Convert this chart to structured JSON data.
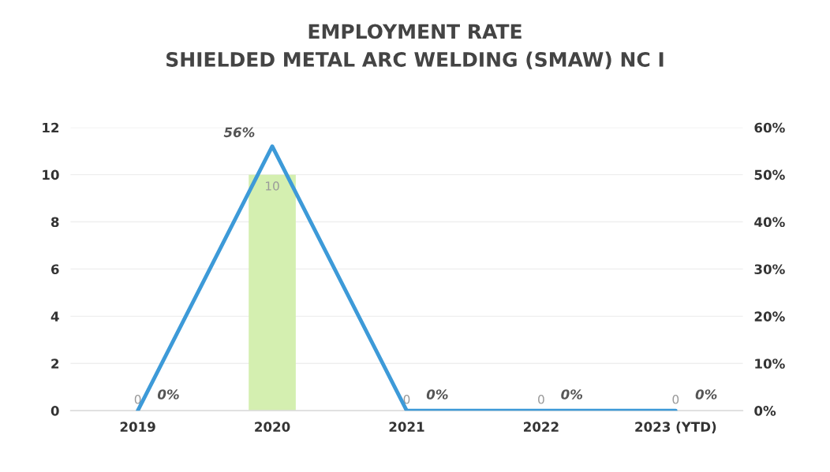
{
  "chart_data": {
    "type": "bar",
    "title": "EMPLOYMENT RATE\nSHIELDED METAL ARC WELDING (SMAW) NC I",
    "categories": [
      "2019",
      "2020",
      "2021",
      "2022",
      "2023 (YTD)"
    ],
    "series": [
      {
        "color": "#d4efb0",
        "values": [
          0,
          10,
          0,
          0,
          0
        ],
        "value_labels": [
          "0",
          "10",
          "0",
          "0",
          "0"
        ]
      },
      {
        "type": "line",
        "axis": "y2",
        "color": "#3d9ad8",
        "values": [
          0,
          56,
          0,
          0,
          0
        ],
        "value_labels": [
          "0%",
          "56%",
          "0%",
          "0%",
          "0%"
        ]
      }
    ],
    "ylim": [
      0,
      12
    ],
    "yticks": [
      0,
      2,
      4,
      6,
      8,
      10,
      12
    ],
    "y2lim": [
      0,
      60
    ],
    "y2ticks": [
      {
        "value": 0,
        "label": "0%"
      },
      {
        "value": 10,
        "label": "10%"
      },
      {
        "value": 20,
        "label": "20%"
      },
      {
        "value": 30,
        "label": "30%"
      },
      {
        "value": 40,
        "label": "40%"
      },
      {
        "value": 50,
        "label": "50%"
      },
      {
        "value": 60,
        "label": "60%"
      }
    ],
    "grid": "y",
    "legend": false,
    "marker": "none",
    "line_style": "solid"
  }
}
